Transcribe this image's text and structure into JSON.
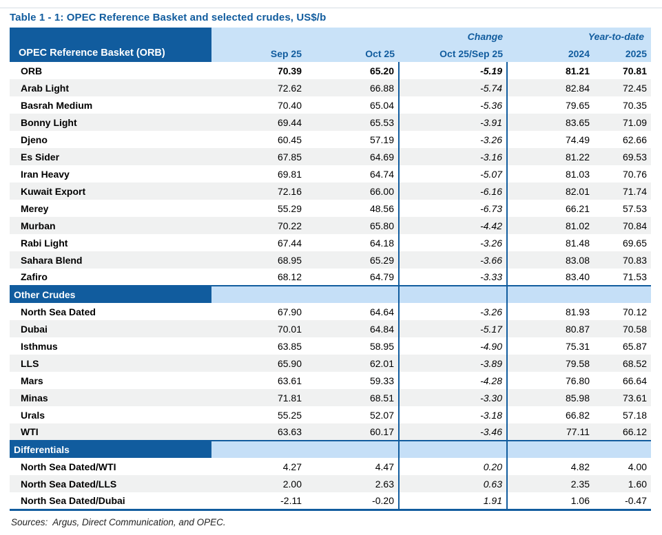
{
  "title": "Table 1 - 1: OPEC Reference Basket and selected crudes, US$/b",
  "colors": {
    "header_blue": "#115C9E",
    "header_light_blue": "#C9E2F8",
    "section_light_blue": "#C5DFF7",
    "alt_row_gray": "#F0F1F1",
    "title_text": "#115C9E",
    "body_text": "#000000"
  },
  "header": {
    "label": "OPEC Reference Basket (ORB)",
    "group_change": "Change",
    "group_ytd": "Year-to-date",
    "columns": [
      "Sep 25",
      "Oct 25",
      "Oct 25/Sep 25",
      "2024",
      "2025"
    ]
  },
  "sections": [
    {
      "header": null,
      "rows": [
        {
          "label": "ORB",
          "bold": true,
          "values": [
            "70.39",
            "65.20",
            "-5.19",
            "81.21",
            "70.81"
          ]
        },
        {
          "label": "Arab Light",
          "values": [
            "72.62",
            "66.88",
            "-5.74",
            "82.84",
            "72.45"
          ]
        },
        {
          "label": "Basrah Medium",
          "values": [
            "70.40",
            "65.04",
            "-5.36",
            "79.65",
            "70.35"
          ]
        },
        {
          "label": "Bonny Light",
          "values": [
            "69.44",
            "65.53",
            "-3.91",
            "83.65",
            "71.09"
          ]
        },
        {
          "label": "Djeno",
          "values": [
            "60.45",
            "57.19",
            "-3.26",
            "74.49",
            "62.66"
          ]
        },
        {
          "label": "Es Sider",
          "values": [
            "67.85",
            "64.69",
            "-3.16",
            "81.22",
            "69.53"
          ]
        },
        {
          "label": "Iran Heavy",
          "values": [
            "69.81",
            "64.74",
            "-5.07",
            "81.03",
            "70.76"
          ]
        },
        {
          "label": "Kuwait Export",
          "values": [
            "72.16",
            "66.00",
            "-6.16",
            "82.01",
            "71.74"
          ]
        },
        {
          "label": "Merey",
          "values": [
            "55.29",
            "48.56",
            "-6.73",
            "66.21",
            "57.53"
          ]
        },
        {
          "label": "Murban",
          "values": [
            "70.22",
            "65.80",
            "-4.42",
            "81.02",
            "70.84"
          ]
        },
        {
          "label": "Rabi Light",
          "values": [
            "67.44",
            "64.18",
            "-3.26",
            "81.48",
            "69.65"
          ]
        },
        {
          "label": "Sahara Blend",
          "values": [
            "68.95",
            "65.29",
            "-3.66",
            "83.08",
            "70.83"
          ]
        },
        {
          "label": "Zafiro",
          "values": [
            "68.12",
            "64.79",
            "-3.33",
            "83.40",
            "71.53"
          ]
        }
      ]
    },
    {
      "header": "Other Crudes",
      "rows": [
        {
          "label": "North Sea Dated",
          "values": [
            "67.90",
            "64.64",
            "-3.26",
            "81.93",
            "70.12"
          ]
        },
        {
          "label": "Dubai",
          "values": [
            "70.01",
            "64.84",
            "-5.17",
            "80.87",
            "70.58"
          ]
        },
        {
          "label": "Isthmus",
          "values": [
            "63.85",
            "58.95",
            "-4.90",
            "75.31",
            "65.87"
          ]
        },
        {
          "label": "LLS",
          "values": [
            "65.90",
            "62.01",
            "-3.89",
            "79.58",
            "68.52"
          ]
        },
        {
          "label": "Mars",
          "values": [
            "63.61",
            "59.33",
            "-4.28",
            "76.80",
            "66.64"
          ]
        },
        {
          "label": "Minas",
          "values": [
            "71.81",
            "68.51",
            "-3.30",
            "85.98",
            "73.61"
          ]
        },
        {
          "label": "Urals",
          "values": [
            "55.25",
            "52.07",
            "-3.18",
            "66.82",
            "57.18"
          ]
        },
        {
          "label": "WTI",
          "values": [
            "63.63",
            "60.17",
            "-3.46",
            "77.11",
            "66.12"
          ]
        }
      ]
    },
    {
      "header": "Differentials",
      "rows": [
        {
          "label": "North Sea Dated/WTI",
          "values": [
            "4.27",
            "4.47",
            "0.20",
            "4.82",
            "4.00"
          ]
        },
        {
          "label": "North Sea Dated/LLS",
          "values": [
            "2.00",
            "2.63",
            "0.63",
            "2.35",
            "1.60"
          ]
        },
        {
          "label": "North Sea Dated/Dubai",
          "values": [
            "-2.11",
            "-0.20",
            "1.91",
            "1.06",
            "-0.47"
          ]
        }
      ]
    }
  ],
  "footer": {
    "sources": "Sources:  Argus, Direct Communication, and OPEC."
  }
}
